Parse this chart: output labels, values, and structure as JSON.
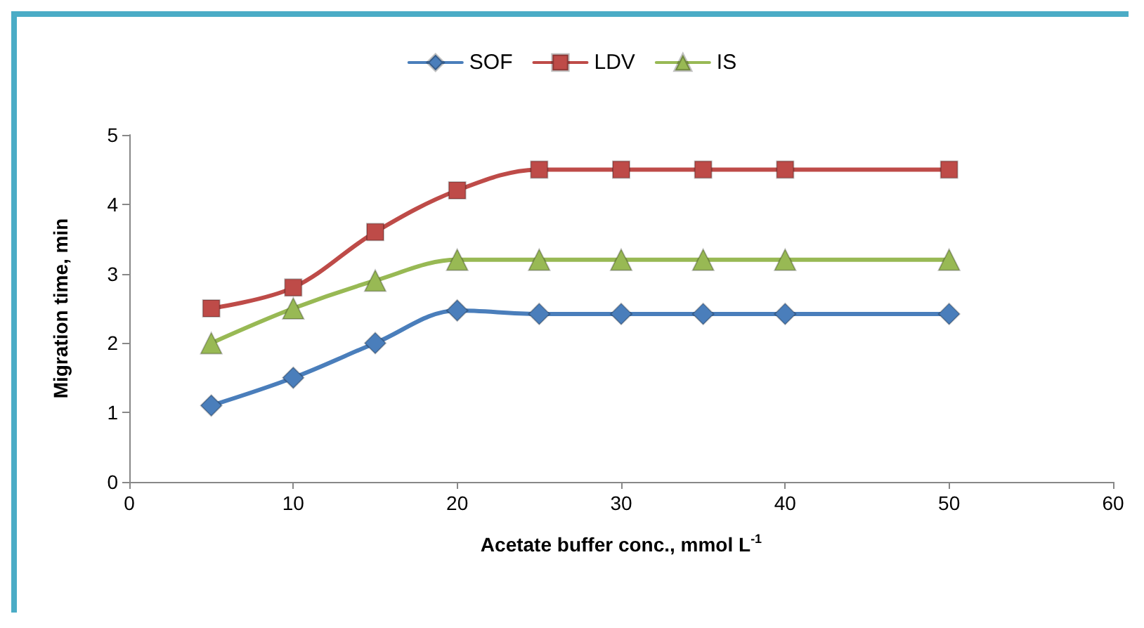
{
  "chart_data": {
    "type": "line",
    "xlabel": "Acetate buffer conc., mmol L$^{-1}$",
    "ylabel": "Migration time, min",
    "x": [
      5,
      10,
      15,
      20,
      25,
      30,
      35,
      40,
      50
    ],
    "series": [
      {
        "name": "SOF",
        "color": "#4a7ebb",
        "marker": "diamond",
        "values": [
          1.1,
          1.5,
          2.0,
          2.47,
          2.42,
          2.42,
          2.42,
          2.42,
          2.42
        ]
      },
      {
        "name": "LDV",
        "color": "#be4b48",
        "marker": "square",
        "values": [
          2.5,
          2.8,
          3.6,
          4.2,
          4.5,
          4.5,
          4.5,
          4.5,
          4.5
        ]
      },
      {
        "name": "IS",
        "color": "#98b954",
        "marker": "triangle",
        "values": [
          2.0,
          2.5,
          2.9,
          3.2,
          3.2,
          3.2,
          3.2,
          3.2,
          3.2
        ]
      }
    ],
    "xlim": [
      0,
      60
    ],
    "xticks": [
      0,
      10,
      20,
      30,
      40,
      50,
      60
    ],
    "ylim": [
      0,
      5
    ],
    "yticks": [
      0,
      1,
      2,
      3,
      4,
      5
    ],
    "grid": false,
    "legend": "top"
  }
}
